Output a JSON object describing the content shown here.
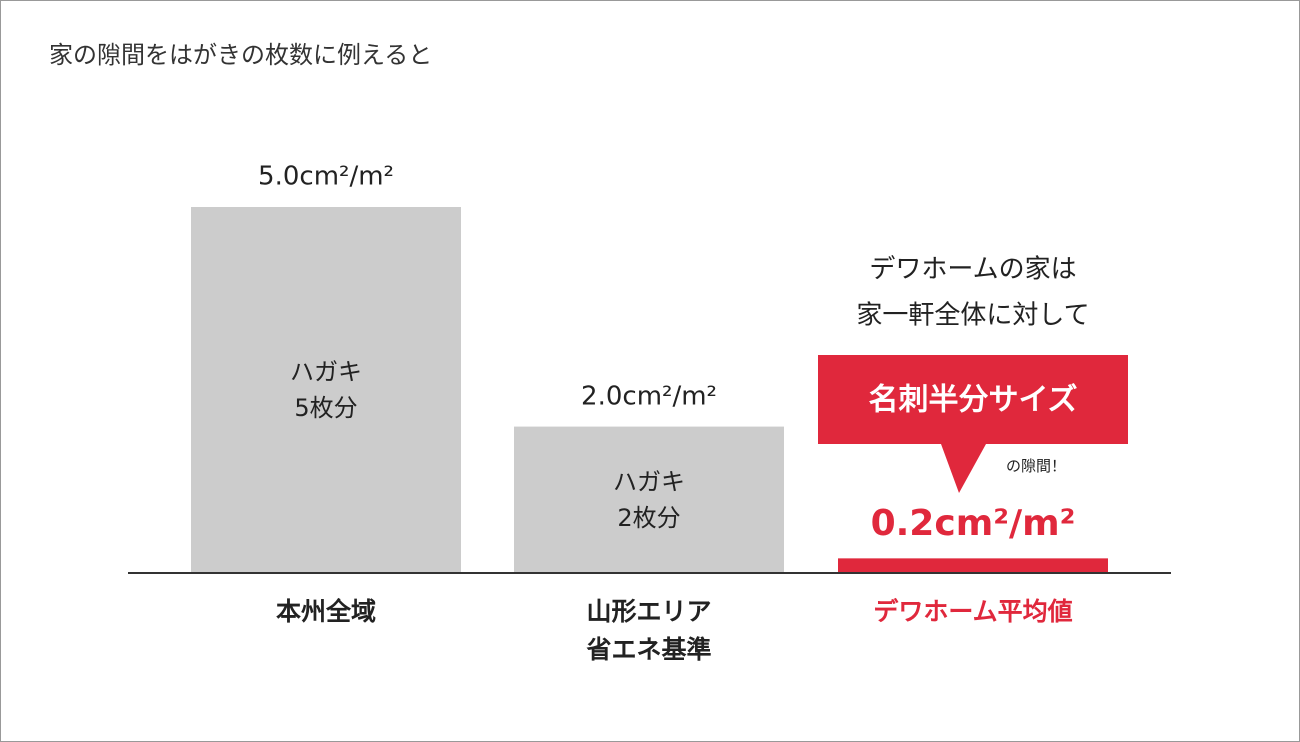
{
  "chart_data": {
    "type": "bar",
    "title": "家の隙間をはがきの枚数に例えると",
    "categories": [
      "本州全域",
      "山形エリア\n省エネ基準",
      "デワホーム平均値"
    ],
    "values": [
      5.0,
      2.0,
      0.2
    ],
    "value_labels": [
      "5.0cm²/m²",
      "2.0cm²/m²",
      "0.2cm²/m²"
    ],
    "colors": [
      "#cccccc",
      "#cccccc",
      "#e0283c"
    ],
    "label_colors": [
      "#222222",
      "#222222",
      "#e0283c"
    ],
    "bar_labels": [
      "ハガキ\n5枚分",
      "ハガキ\n2枚分",
      null
    ],
    "callout": {
      "heading": "デワホームの家は\n家一軒全体に対して",
      "box": "名刺半分サイズ",
      "note": "の隙間！"
    }
  }
}
